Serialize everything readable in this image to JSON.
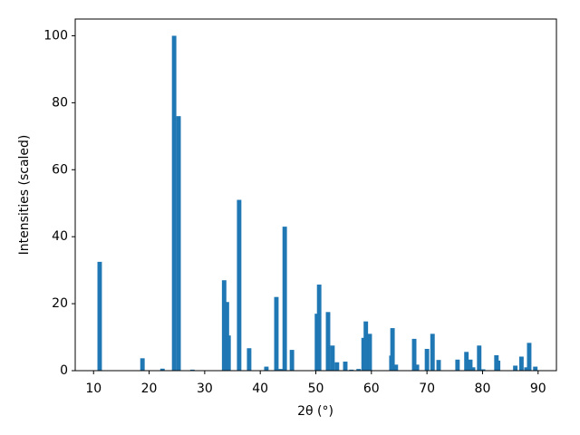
{
  "chart_data": {
    "type": "bar",
    "x_label": "2θ (°)",
    "y_label": "Intensities (scaled)",
    "x": [
      11.1,
      18.8,
      22.4,
      24.5,
      25.3,
      27.8,
      33.5,
      34.0,
      34.3,
      36.2,
      38.0,
      41.1,
      42.9,
      43.7,
      44.4,
      45.7,
      50.2,
      50.6,
      52.2,
      53.0,
      53.8,
      55.3,
      56.4,
      57.7,
      58.6,
      59.0,
      59.7,
      63.6,
      63.8,
      64.4,
      67.7,
      68.2,
      70.0,
      71.0,
      72.1,
      75.5,
      77.1,
      77.8,
      78.3,
      79.4,
      80.1,
      82.5,
      82.8,
      85.9,
      87.0,
      87.9,
      88.4,
      89.5
    ],
    "values": [
      32.5,
      3.7,
      0.6,
      100,
      76,
      0.3,
      27,
      20.5,
      10.5,
      51,
      6.7,
      1.2,
      22,
      0.5,
      43,
      6.2,
      17,
      25.7,
      17.5,
      7.5,
      2.5,
      2.7,
      0.3,
      0.5,
      9.8,
      14.7,
      11,
      4.5,
      12.7,
      1.8,
      9.5,
      1.8,
      6.5,
      11,
      3.2,
      3.3,
      5.6,
      3.3,
      1,
      7.5,
      0.4,
      4.6,
      3,
      1.5,
      4.2,
      1,
      8.3,
      1.2
    ],
    "color": "#1f77b4",
    "xlim": [
      6.7,
      93.3
    ],
    "xticks": [
      10,
      20,
      30,
      40,
      50,
      60,
      70,
      80,
      90
    ],
    "ylim": [
      0,
      105
    ],
    "yticks": [
      0,
      20,
      40,
      60,
      80,
      100
    ]
  }
}
